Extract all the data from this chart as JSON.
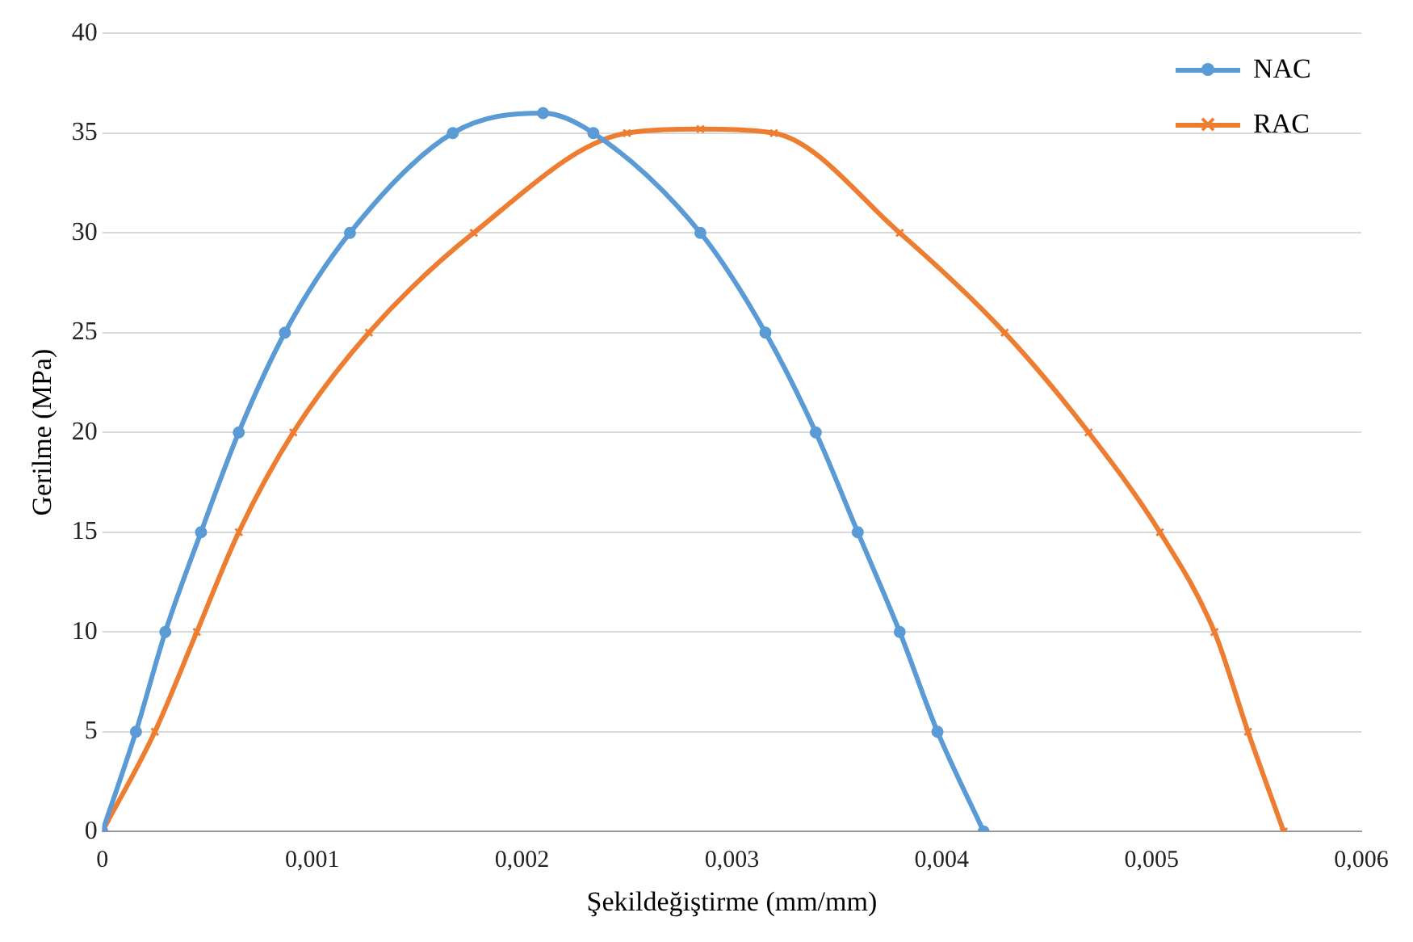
{
  "chart_data": {
    "type": "line",
    "xlabel": "Şekildeğiştirme (mm/mm)",
    "ylabel": "Gerilme (MPa)",
    "xlim": [
      0,
      0.006
    ],
    "xticks": [
      {
        "value": 0,
        "label": "0"
      },
      {
        "value": 0.001,
        "label": "0,001"
      },
      {
        "value": 0.002,
        "label": "0,002"
      },
      {
        "value": 0.003,
        "label": "0,003"
      },
      {
        "value": 0.004,
        "label": "0,004"
      },
      {
        "value": 0.005,
        "label": "0,005"
      },
      {
        "value": 0.006,
        "label": "0,006"
      }
    ],
    "ylim": [
      0,
      40
    ],
    "yticks": [
      0,
      5,
      10,
      15,
      20,
      25,
      30,
      35,
      40
    ],
    "grid": "y",
    "legend": "top right",
    "line_style": "solid",
    "series": [
      {
        "name": "NAC",
        "color": "#5b9bd5",
        "marker": "circle",
        "x": [
          0,
          0.00016,
          0.0003,
          0.00047,
          0.00065,
          0.00087,
          0.00118,
          0.00167,
          0.0021,
          0.00234,
          0.00285,
          0.00316,
          0.0034,
          0.0036,
          0.0038,
          0.00398,
          0.0042
        ],
        "values": [
          0,
          5,
          10,
          15,
          20,
          25,
          30,
          35,
          36,
          35,
          30,
          25,
          20,
          15,
          10,
          5,
          0
        ]
      },
      {
        "name": "RAC",
        "color": "#ed7d31",
        "marker": "cross",
        "x": [
          0,
          0.00025,
          0.00045,
          0.00065,
          0.00091,
          0.00127,
          0.00177,
          0.0025,
          0.00285,
          0.0032,
          0.0038,
          0.0043,
          0.0047,
          0.00504,
          0.0053,
          0.00546,
          0.00563
        ],
        "values": [
          0,
          5,
          10,
          15,
          20,
          25,
          30,
          35,
          35.2,
          35,
          30,
          25,
          20,
          15,
          10,
          5,
          0
        ]
      }
    ]
  }
}
